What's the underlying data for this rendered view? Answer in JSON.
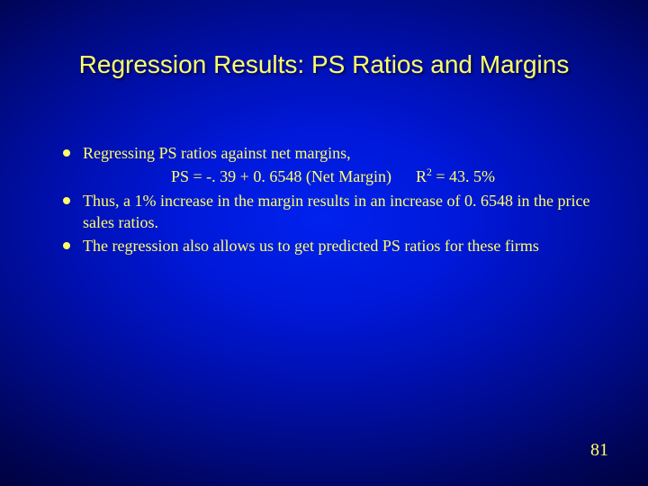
{
  "colors": {
    "text": "#ffff66",
    "bg_center": "#0022ee",
    "bg_edge": "#000030"
  },
  "typography": {
    "title_fontsize": 28,
    "body_fontsize": 18,
    "pagenum_fontsize": 20,
    "title_font": "Arial",
    "body_font": "Times New Roman"
  },
  "title": "Regression Results: PS Ratios and Margins",
  "bullets": [
    {
      "line1": "Regressing PS ratios against net margins,",
      "equation": "PS = -. 39 + 0. 6548 (Net Margin)",
      "r2_prefix": "R",
      "r2_exp": "2",
      "r2_suffix": " = 43. 5%"
    },
    {
      "line1": "Thus, a 1% increase in the margin results in an increase of 0. 6548 in the price sales ratios."
    },
    {
      "line1": "The regression also allows us to get predicted PS ratios for these firms"
    }
  ],
  "page_number": "81"
}
